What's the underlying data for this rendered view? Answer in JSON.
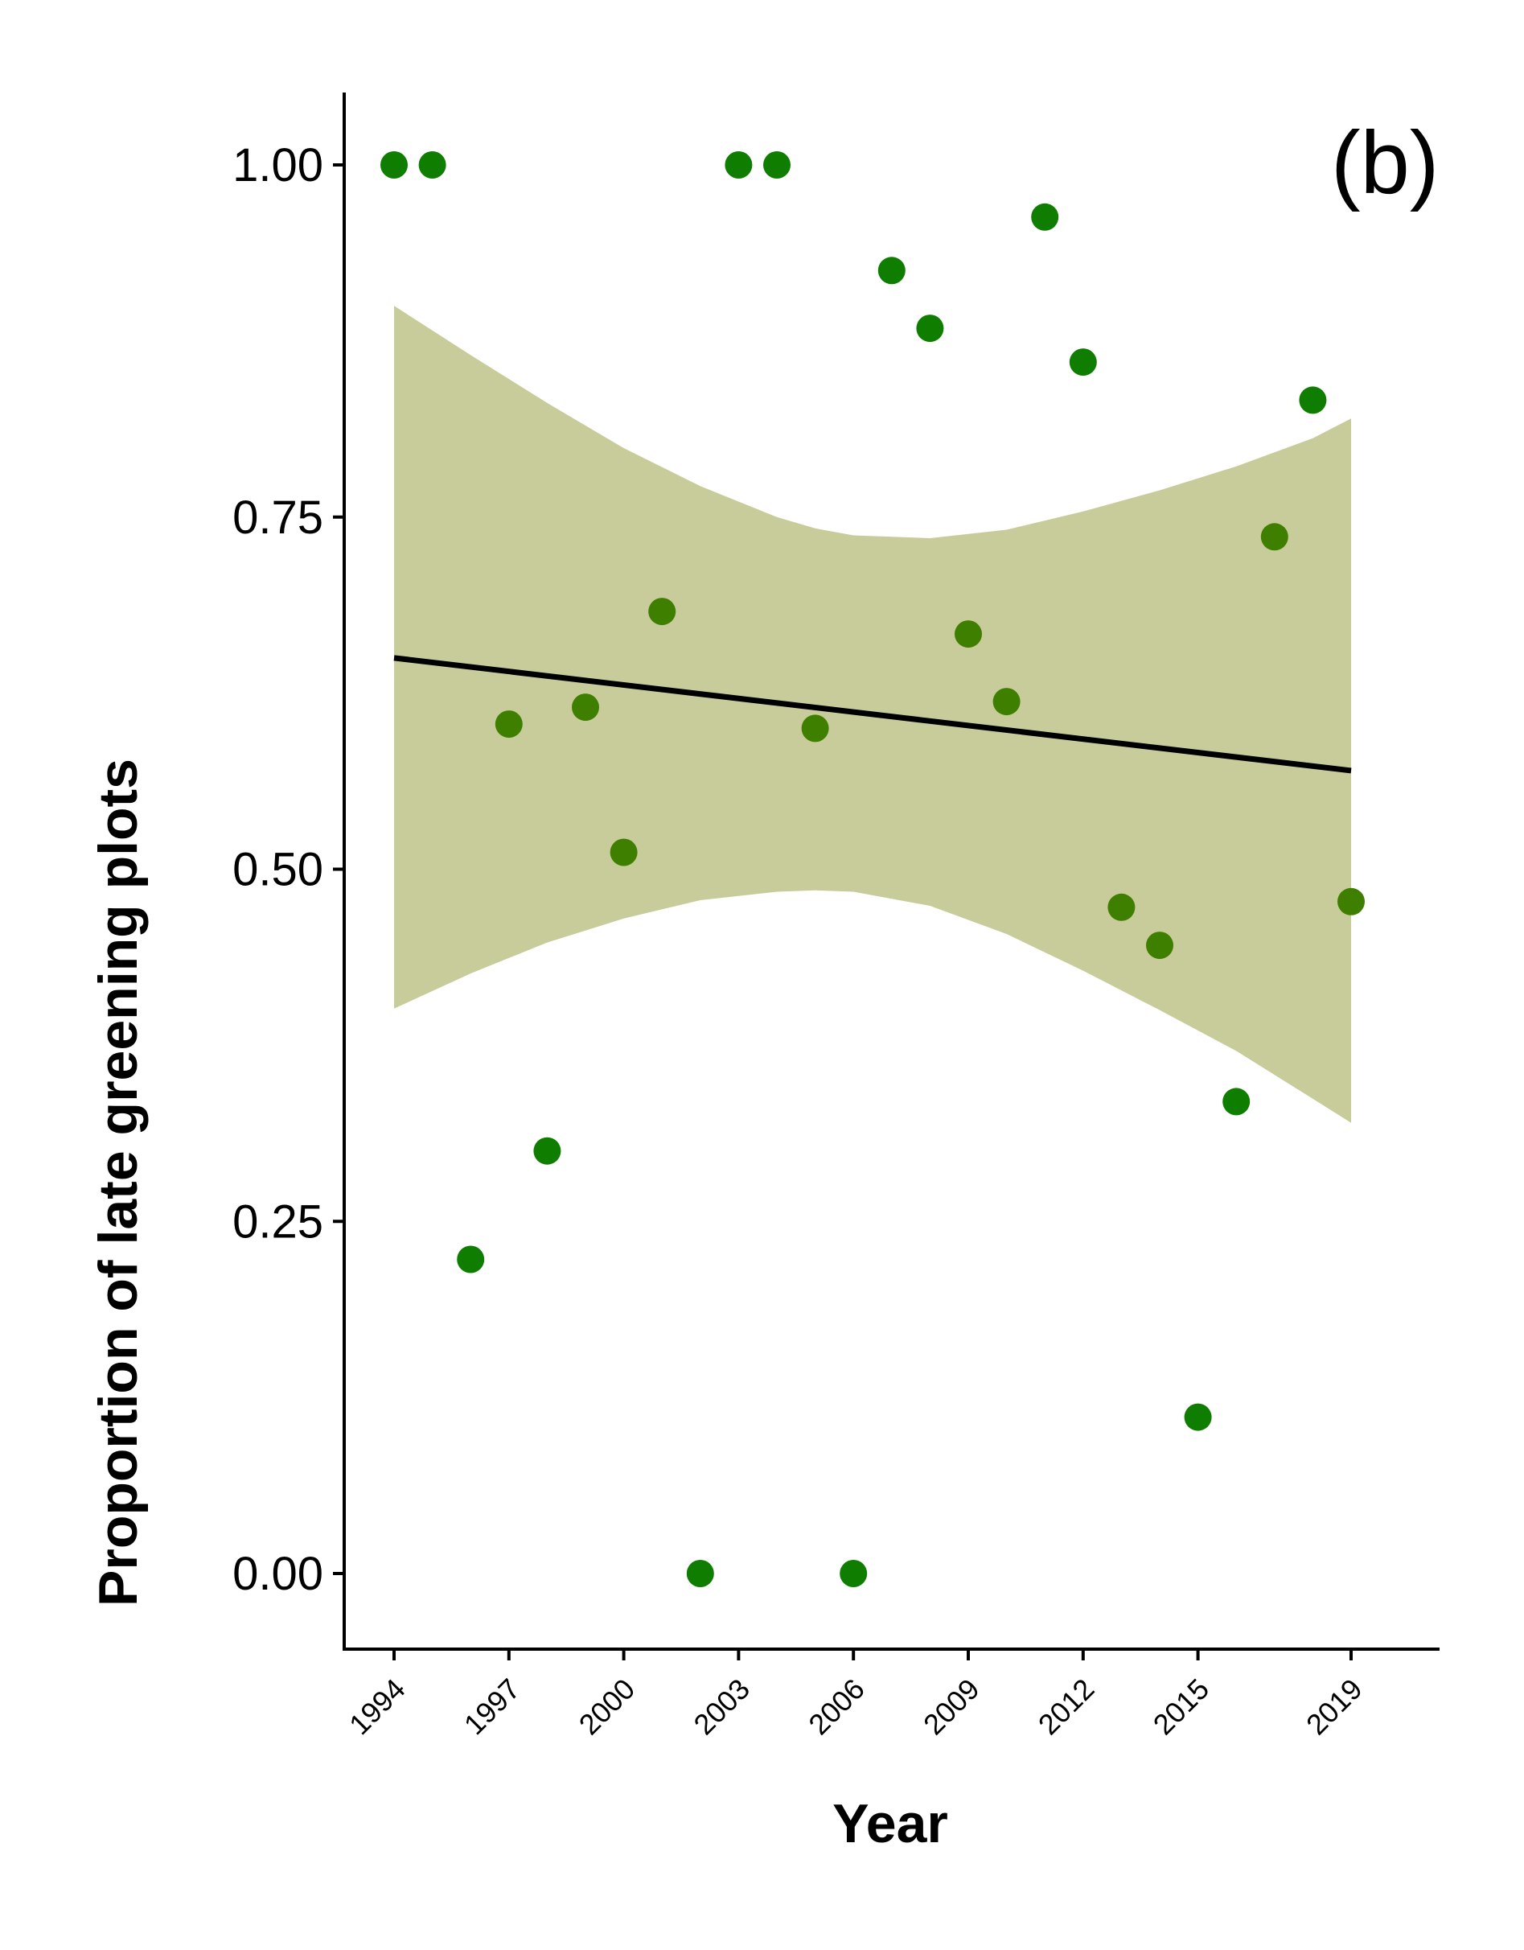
{
  "panel_label": "(b)",
  "colors": {
    "ribbon": "#c8cc9a",
    "trend_line": "#000000",
    "axis": "#000000",
    "points_low_deviation": "#3f7f00",
    "points_high_deviation": "#0e7d00"
  },
  "chart_data": {
    "type": "scatter",
    "title": "",
    "xlabel": "Year",
    "ylabel": "Proportion of late greening plots",
    "xlim": [
      1993.6,
      2020.0
    ],
    "ylim": [
      -0.05,
      1.05
    ],
    "x_ticks": [
      1994,
      1997,
      2000,
      2003,
      2006,
      2009,
      2012,
      2015,
      2019
    ],
    "x_tick_labels": [
      "1994",
      "1997",
      "2000",
      "2003",
      "2006",
      "2009",
      "2012",
      "2015",
      "2019"
    ],
    "y_ticks": [
      0.0,
      0.25,
      0.5,
      0.75,
      1.0
    ],
    "y_tick_labels": [
      "0.00",
      "0.25",
      "0.50",
      "0.75",
      "1.00"
    ],
    "grid": false,
    "legend": "none",
    "points": [
      {
        "x": 1994,
        "y": 1.0
      },
      {
        "x": 1995,
        "y": 1.0
      },
      {
        "x": 1996,
        "y": 0.223
      },
      {
        "x": 1997,
        "y": 0.603
      },
      {
        "x": 1998,
        "y": 0.3
      },
      {
        "x": 1999,
        "y": 0.615
      },
      {
        "x": 2000,
        "y": 0.512
      },
      {
        "x": 2001,
        "y": 0.683
      },
      {
        "x": 2002,
        "y": 0.0
      },
      {
        "x": 2003,
        "y": 1.0
      },
      {
        "x": 2004,
        "y": 1.0
      },
      {
        "x": 2005,
        "y": 0.6
      },
      {
        "x": 2006,
        "y": 0.0
      },
      {
        "x": 2007,
        "y": 0.925
      },
      {
        "x": 2008,
        "y": 0.884
      },
      {
        "x": 2009,
        "y": 0.667
      },
      {
        "x": 2010,
        "y": 0.619
      },
      {
        "x": 2011,
        "y": 0.963
      },
      {
        "x": 2012,
        "y": 0.86
      },
      {
        "x": 2013,
        "y": 0.473
      },
      {
        "x": 2014,
        "y": 0.446
      },
      {
        "x": 2015,
        "y": 0.111
      },
      {
        "x": 2016,
        "y": 0.335
      },
      {
        "x": 2017,
        "y": 0.736
      },
      {
        "x": 2018,
        "y": 0.833
      },
      {
        "x": 2019,
        "y": 0.477
      }
    ],
    "trend_line": {
      "x": [
        1994,
        2019
      ],
      "y": [
        0.65,
        0.57
      ]
    },
    "confidence_band": {
      "x": [
        1994,
        1996,
        1998,
        2000,
        2002,
        2004,
        2005,
        2006,
        2008,
        2010,
        2012,
        2014,
        2016,
        2018,
        2019
      ],
      "upper": [
        0.9,
        0.865,
        0.831,
        0.799,
        0.772,
        0.75,
        0.742,
        0.737,
        0.735,
        0.741,
        0.754,
        0.769,
        0.786,
        0.806,
        0.82
      ],
      "lower": [
        0.401,
        0.426,
        0.448,
        0.465,
        0.478,
        0.484,
        0.485,
        0.484,
        0.474,
        0.454,
        0.428,
        0.4,
        0.371,
        0.337,
        0.32
      ]
    }
  }
}
